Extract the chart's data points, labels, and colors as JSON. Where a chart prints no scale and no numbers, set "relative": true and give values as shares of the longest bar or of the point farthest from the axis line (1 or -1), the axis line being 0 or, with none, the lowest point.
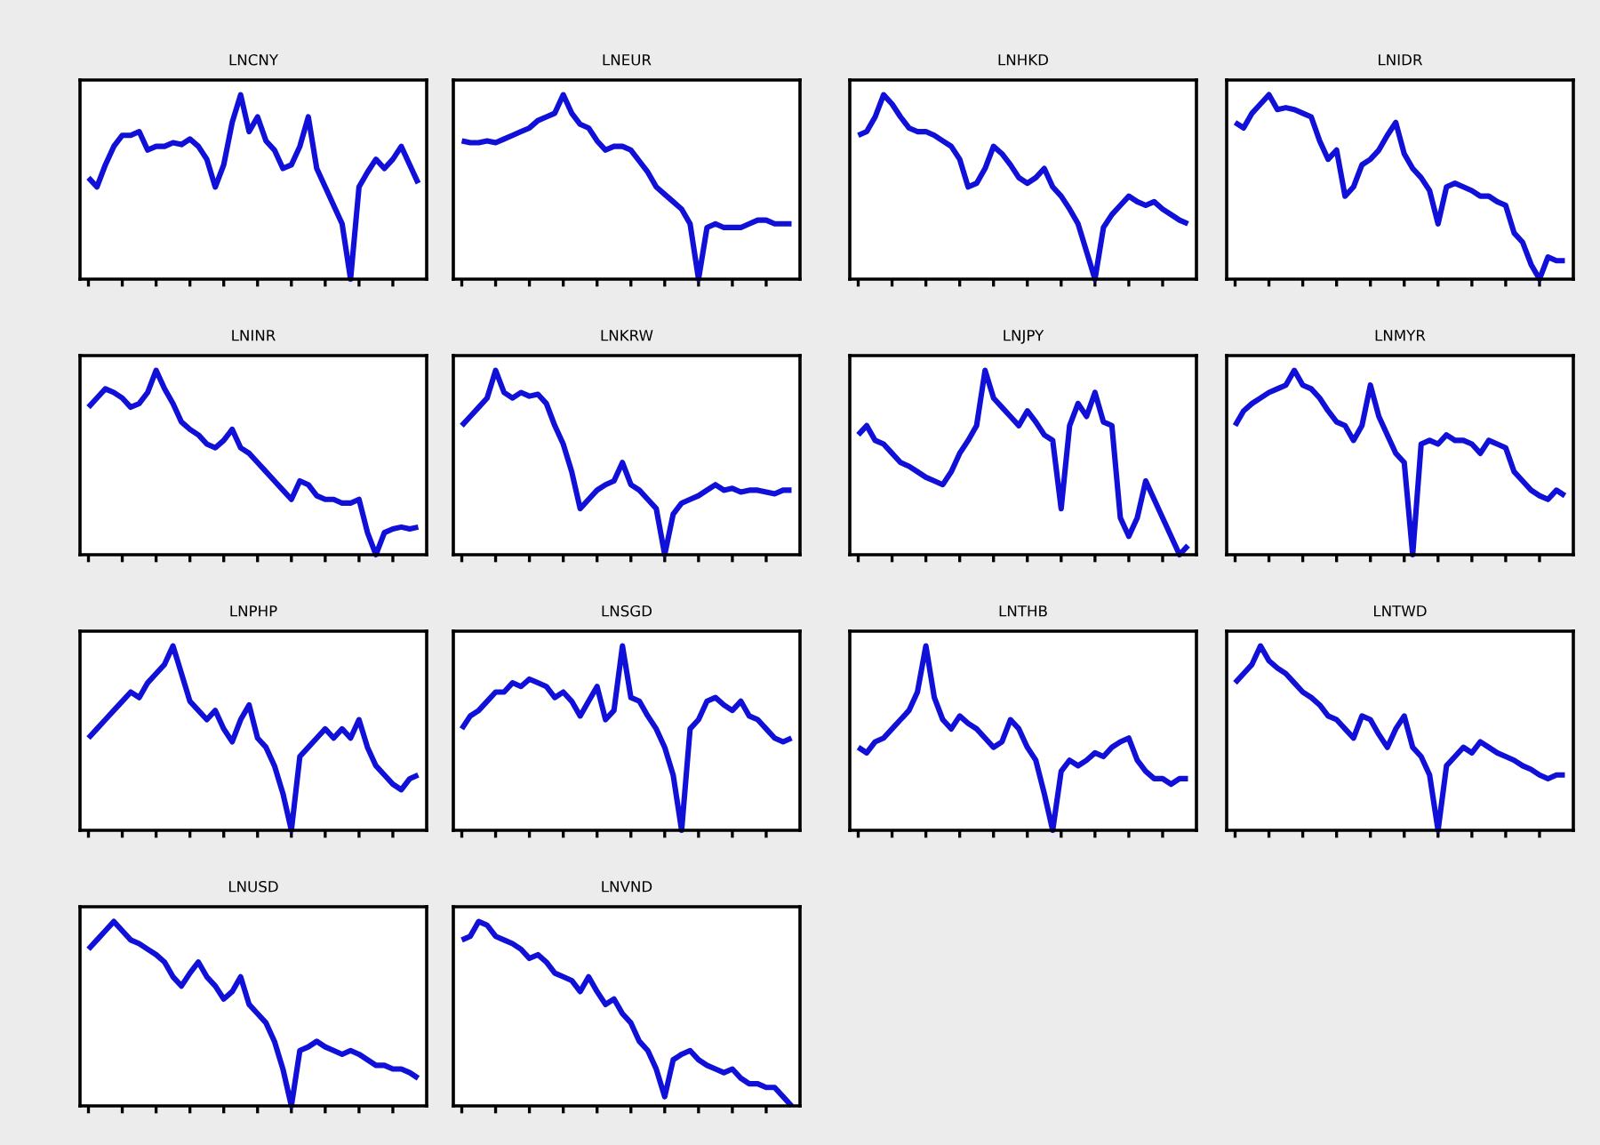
{
  "chart_data": [
    {
      "type": "line",
      "title": "LNCNY",
      "relative": true,
      "categories": [
        null,
        null,
        null,
        null,
        null,
        null,
        null,
        null,
        null,
        null,
        null,
        null,
        null,
        null,
        null,
        null,
        null,
        null,
        null,
        null,
        null,
        null,
        null,
        null,
        null,
        null,
        null,
        null,
        null,
        null,
        null,
        null,
        null,
        null,
        null,
        null,
        null,
        null,
        null,
        null
      ],
      "series": [
        {
          "color": "#1010d8",
          "values": [
            0.55,
            0.5,
            0.62,
            0.72,
            0.78,
            0.78,
            0.8,
            0.7,
            0.72,
            0.72,
            0.74,
            0.73,
            0.76,
            0.72,
            0.65,
            0.5,
            0.62,
            0.85,
            1.0,
            0.8,
            0.88,
            0.75,
            0.7,
            0.6,
            0.62,
            0.72,
            0.88,
            0.6,
            0.5,
            0.4,
            0.3,
            0.0,
            0.5,
            0.58,
            0.65,
            0.6,
            0.65,
            0.72,
            0.62,
            0.52
          ]
        }
      ]
    },
    {
      "type": "line",
      "title": "LNEUR",
      "relative": true,
      "categories": [
        null,
        null,
        null,
        null,
        null,
        null,
        null,
        null,
        null,
        null,
        null,
        null,
        null,
        null,
        null,
        null,
        null,
        null,
        null,
        null,
        null,
        null,
        null,
        null,
        null,
        null,
        null,
        null,
        null,
        null,
        null,
        null,
        null,
        null,
        null,
        null,
        null,
        null,
        null,
        null
      ],
      "series": [
        {
          "color": "#1010d8",
          "values": [
            0.75,
            0.74,
            0.74,
            0.75,
            0.74,
            0.76,
            0.78,
            0.8,
            0.82,
            0.86,
            0.88,
            0.9,
            1.0,
            0.9,
            0.84,
            0.82,
            0.75,
            0.7,
            0.72,
            0.72,
            0.7,
            0.64,
            0.58,
            0.5,
            0.46,
            0.42,
            0.38,
            0.3,
            0.0,
            0.28,
            0.3,
            0.28,
            0.28,
            0.28,
            0.3,
            0.32,
            0.32,
            0.3,
            0.3,
            0.3
          ]
        }
      ]
    },
    {
      "type": "line",
      "title": "LNHKD",
      "relative": true,
      "categories": [
        null,
        null,
        null,
        null,
        null,
        null,
        null,
        null,
        null,
        null,
        null,
        null,
        null,
        null,
        null,
        null,
        null,
        null,
        null,
        null,
        null,
        null,
        null,
        null,
        null,
        null,
        null,
        null,
        null,
        null,
        null,
        null,
        null,
        null,
        null,
        null,
        null,
        null,
        null,
        null
      ],
      "series": [
        {
          "color": "#1010d8",
          "values": [
            0.78,
            0.8,
            0.88,
            1.0,
            0.95,
            0.88,
            0.82,
            0.8,
            0.8,
            0.78,
            0.75,
            0.72,
            0.65,
            0.5,
            0.52,
            0.6,
            0.72,
            0.68,
            0.62,
            0.55,
            0.52,
            0.55,
            0.6,
            0.5,
            0.45,
            0.38,
            0.3,
            0.15,
            0.0,
            0.28,
            0.35,
            0.4,
            0.45,
            0.42,
            0.4,
            0.42,
            0.38,
            0.35,
            0.32,
            0.3
          ]
        }
      ]
    },
    {
      "type": "line",
      "title": "LNIDR",
      "relative": true,
      "categories": [
        null,
        null,
        null,
        null,
        null,
        null,
        null,
        null,
        null,
        null,
        null,
        null,
        null,
        null,
        null,
        null,
        null,
        null,
        null,
        null,
        null,
        null,
        null,
        null,
        null,
        null,
        null,
        null,
        null,
        null,
        null,
        null,
        null,
        null,
        null,
        null,
        null,
        null,
        null,
        null
      ],
      "series": [
        {
          "color": "#1010d8",
          "values": [
            0.85,
            0.82,
            0.9,
            0.95,
            1.0,
            0.92,
            0.93,
            0.92,
            0.9,
            0.88,
            0.75,
            0.65,
            0.7,
            0.45,
            0.5,
            0.62,
            0.65,
            0.7,
            0.78,
            0.85,
            0.68,
            0.6,
            0.55,
            0.48,
            0.3,
            0.5,
            0.52,
            0.5,
            0.48,
            0.45,
            0.45,
            0.42,
            0.4,
            0.25,
            0.2,
            0.08,
            0.0,
            0.12,
            0.1,
            0.1
          ]
        }
      ]
    },
    {
      "type": "line",
      "title": "LNINR",
      "relative": true,
      "categories": [
        null,
        null,
        null,
        null,
        null,
        null,
        null,
        null,
        null,
        null,
        null,
        null,
        null,
        null,
        null,
        null,
        null,
        null,
        null,
        null,
        null,
        null,
        null,
        null,
        null,
        null,
        null,
        null,
        null,
        null,
        null,
        null,
        null,
        null,
        null,
        null,
        null,
        null,
        null,
        null
      ],
      "series": [
        {
          "color": "#1010d8",
          "values": [
            0.8,
            0.85,
            0.9,
            0.88,
            0.85,
            0.8,
            0.82,
            0.88,
            1.0,
            0.9,
            0.82,
            0.72,
            0.68,
            0.65,
            0.6,
            0.58,
            0.62,
            0.68,
            0.58,
            0.55,
            0.5,
            0.45,
            0.4,
            0.35,
            0.3,
            0.4,
            0.38,
            0.32,
            0.3,
            0.3,
            0.28,
            0.28,
            0.3,
            0.12,
            0.0,
            0.12,
            0.14,
            0.15,
            0.14,
            0.15
          ]
        }
      ]
    },
    {
      "type": "line",
      "title": "LNKRW",
      "relative": true,
      "categories": [
        null,
        null,
        null,
        null,
        null,
        null,
        null,
        null,
        null,
        null,
        null,
        null,
        null,
        null,
        null,
        null,
        null,
        null,
        null,
        null,
        null,
        null,
        null,
        null,
        null,
        null,
        null,
        null,
        null,
        null,
        null,
        null,
        null,
        null,
        null,
        null,
        null,
        null,
        null,
        null
      ],
      "series": [
        {
          "color": "#1010d8",
          "values": [
            0.7,
            0.75,
            0.8,
            0.85,
            1.0,
            0.88,
            0.85,
            0.88,
            0.86,
            0.87,
            0.82,
            0.7,
            0.6,
            0.45,
            0.25,
            0.3,
            0.35,
            0.38,
            0.4,
            0.5,
            0.38,
            0.35,
            0.3,
            0.25,
            0.0,
            0.22,
            0.28,
            0.3,
            0.32,
            0.35,
            0.38,
            0.35,
            0.36,
            0.34,
            0.35,
            0.35,
            0.34,
            0.33,
            0.35,
            0.35
          ]
        }
      ]
    },
    {
      "type": "line",
      "title": "LNJPY",
      "relative": true,
      "categories": [
        null,
        null,
        null,
        null,
        null,
        null,
        null,
        null,
        null,
        null,
        null,
        null,
        null,
        null,
        null,
        null,
        null,
        null,
        null,
        null,
        null,
        null,
        null,
        null,
        null,
        null,
        null,
        null,
        null,
        null,
        null,
        null,
        null,
        null,
        null,
        null,
        null,
        null,
        null,
        null
      ],
      "series": [
        {
          "color": "#1010d8",
          "values": [
            0.65,
            0.7,
            0.62,
            0.6,
            0.55,
            0.5,
            0.48,
            0.45,
            0.42,
            0.4,
            0.38,
            0.45,
            0.55,
            0.62,
            0.7,
            1.0,
            0.85,
            0.8,
            0.75,
            0.7,
            0.78,
            0.72,
            0.65,
            0.62,
            0.25,
            0.7,
            0.82,
            0.75,
            0.88,
            0.72,
            0.7,
            0.2,
            0.1,
            0.2,
            0.4,
            0.3,
            0.2,
            0.1,
            0.0,
            0.05
          ]
        }
      ]
    },
    {
      "type": "line",
      "title": "LNMYR",
      "relative": true,
      "categories": [
        null,
        null,
        null,
        null,
        null,
        null,
        null,
        null,
        null,
        null,
        null,
        null,
        null,
        null,
        null,
        null,
        null,
        null,
        null,
        null,
        null,
        null,
        null,
        null,
        null,
        null,
        null,
        null,
        null,
        null,
        null,
        null,
        null,
        null,
        null,
        null,
        null,
        null,
        null,
        null
      ],
      "series": [
        {
          "color": "#1010d8",
          "values": [
            0.7,
            0.78,
            0.82,
            0.85,
            0.88,
            0.9,
            0.92,
            1.0,
            0.92,
            0.9,
            0.85,
            0.78,
            0.72,
            0.7,
            0.62,
            0.7,
            0.92,
            0.75,
            0.65,
            0.55,
            0.5,
            0.0,
            0.6,
            0.62,
            0.6,
            0.65,
            0.62,
            0.62,
            0.6,
            0.55,
            0.62,
            0.6,
            0.58,
            0.45,
            0.4,
            0.35,
            0.32,
            0.3,
            0.35,
            0.32
          ]
        }
      ]
    },
    {
      "type": "line",
      "title": "LNPHP",
      "relative": true,
      "categories": [
        null,
        null,
        null,
        null,
        null,
        null,
        null,
        null,
        null,
        null,
        null,
        null,
        null,
        null,
        null,
        null,
        null,
        null,
        null,
        null,
        null,
        null,
        null,
        null,
        null,
        null,
        null,
        null,
        null,
        null,
        null,
        null,
        null,
        null,
        null,
        null,
        null,
        null,
        null,
        null
      ],
      "series": [
        {
          "color": "#1010d8",
          "values": [
            0.5,
            0.55,
            0.6,
            0.65,
            0.7,
            0.75,
            0.72,
            0.8,
            0.85,
            0.9,
            1.0,
            0.85,
            0.7,
            0.65,
            0.6,
            0.65,
            0.55,
            0.48,
            0.6,
            0.68,
            0.5,
            0.45,
            0.35,
            0.2,
            0.0,
            0.4,
            0.45,
            0.5,
            0.55,
            0.5,
            0.55,
            0.5,
            0.6,
            0.45,
            0.35,
            0.3,
            0.25,
            0.22,
            0.28,
            0.3
          ]
        }
      ]
    },
    {
      "type": "line",
      "title": "LNSGD",
      "relative": true,
      "categories": [
        null,
        null,
        null,
        null,
        null,
        null,
        null,
        null,
        null,
        null,
        null,
        null,
        null,
        null,
        null,
        null,
        null,
        null,
        null,
        null,
        null,
        null,
        null,
        null,
        null,
        null,
        null,
        null,
        null,
        null,
        null,
        null,
        null,
        null,
        null,
        null,
        null,
        null,
        null,
        null
      ],
      "series": [
        {
          "color": "#1010d8",
          "values": [
            0.55,
            0.62,
            0.65,
            0.7,
            0.75,
            0.75,
            0.8,
            0.78,
            0.82,
            0.8,
            0.78,
            0.72,
            0.75,
            0.7,
            0.62,
            0.7,
            0.78,
            0.6,
            0.65,
            1.0,
            0.72,
            0.7,
            0.62,
            0.55,
            0.45,
            0.3,
            0.0,
            0.55,
            0.6,
            0.7,
            0.72,
            0.68,
            0.65,
            0.7,
            0.62,
            0.6,
            0.55,
            0.5,
            0.48,
            0.5
          ]
        }
      ]
    },
    {
      "type": "line",
      "title": "LNTHB",
      "relative": true,
      "categories": [
        null,
        null,
        null,
        null,
        null,
        null,
        null,
        null,
        null,
        null,
        null,
        null,
        null,
        null,
        null,
        null,
        null,
        null,
        null,
        null,
        null,
        null,
        null,
        null,
        null,
        null,
        null,
        null,
        null,
        null,
        null,
        null,
        null,
        null,
        null,
        null,
        null,
        null,
        null,
        null
      ],
      "series": [
        {
          "color": "#1010d8",
          "values": [
            0.45,
            0.42,
            0.48,
            0.5,
            0.55,
            0.6,
            0.65,
            0.75,
            1.0,
            0.72,
            0.6,
            0.55,
            0.62,
            0.58,
            0.55,
            0.5,
            0.45,
            0.48,
            0.6,
            0.55,
            0.45,
            0.38,
            0.2,
            0.0,
            0.32,
            0.38,
            0.35,
            0.38,
            0.42,
            0.4,
            0.45,
            0.48,
            0.5,
            0.38,
            0.32,
            0.28,
            0.28,
            0.25,
            0.28,
            0.28
          ]
        }
      ]
    },
    {
      "type": "line",
      "title": "LNTWD",
      "relative": true,
      "categories": [
        null,
        null,
        null,
        null,
        null,
        null,
        null,
        null,
        null,
        null,
        null,
        null,
        null,
        null,
        null,
        null,
        null,
        null,
        null,
        null,
        null,
        null,
        null,
        null,
        null,
        null,
        null,
        null,
        null,
        null,
        null,
        null,
        null,
        null,
        null,
        null,
        null,
        null,
        null,
        null
      ],
      "series": [
        {
          "color": "#1010d8",
          "values": [
            0.8,
            0.85,
            0.9,
            1.0,
            0.92,
            0.88,
            0.85,
            0.8,
            0.75,
            0.72,
            0.68,
            0.62,
            0.6,
            0.55,
            0.5,
            0.62,
            0.6,
            0.52,
            0.45,
            0.55,
            0.62,
            0.45,
            0.4,
            0.3,
            0.0,
            0.35,
            0.4,
            0.45,
            0.42,
            0.48,
            0.45,
            0.42,
            0.4,
            0.38,
            0.35,
            0.33,
            0.3,
            0.28,
            0.3,
            0.3
          ]
        }
      ]
    },
    {
      "type": "line",
      "title": "LNUSD",
      "relative": true,
      "categories": [
        null,
        null,
        null,
        null,
        null,
        null,
        null,
        null,
        null,
        null,
        null,
        null,
        null,
        null,
        null,
        null,
        null,
        null,
        null,
        null,
        null,
        null,
        null,
        null,
        null,
        null,
        null,
        null,
        null,
        null,
        null,
        null,
        null,
        null,
        null,
        null,
        null,
        null,
        null,
        null
      ],
      "series": [
        {
          "color": "#1010d8",
          "values": [
            0.85,
            0.9,
            0.95,
            1.0,
            0.95,
            0.9,
            0.88,
            0.85,
            0.82,
            0.78,
            0.7,
            0.65,
            0.72,
            0.78,
            0.7,
            0.65,
            0.58,
            0.62,
            0.7,
            0.55,
            0.5,
            0.45,
            0.35,
            0.2,
            0.0,
            0.3,
            0.32,
            0.35,
            0.32,
            0.3,
            0.28,
            0.3,
            0.28,
            0.25,
            0.22,
            0.22,
            0.2,
            0.2,
            0.18,
            0.15
          ]
        }
      ]
    },
    {
      "type": "line",
      "title": "LNVND",
      "relative": true,
      "categories": [
        null,
        null,
        null,
        null,
        null,
        null,
        null,
        null,
        null,
        null,
        null,
        null,
        null,
        null,
        null,
        null,
        null,
        null,
        null,
        null,
        null,
        null,
        null,
        null,
        null,
        null,
        null,
        null,
        null,
        null,
        null,
        null,
        null,
        null,
        null,
        null,
        null,
        null,
        null,
        null
      ],
      "series": [
        {
          "color": "#1010d8",
          "values": [
            0.9,
            0.92,
            1.0,
            0.98,
            0.92,
            0.9,
            0.88,
            0.85,
            0.8,
            0.82,
            0.78,
            0.72,
            0.7,
            0.68,
            0.62,
            0.7,
            0.62,
            0.55,
            0.58,
            0.5,
            0.45,
            0.35,
            0.3,
            0.2,
            0.05,
            0.25,
            0.28,
            0.3,
            0.25,
            0.22,
            0.2,
            0.18,
            0.2,
            0.15,
            0.12,
            0.12,
            0.1,
            0.1,
            0.05,
            0.0
          ]
        }
      ]
    }
  ]
}
